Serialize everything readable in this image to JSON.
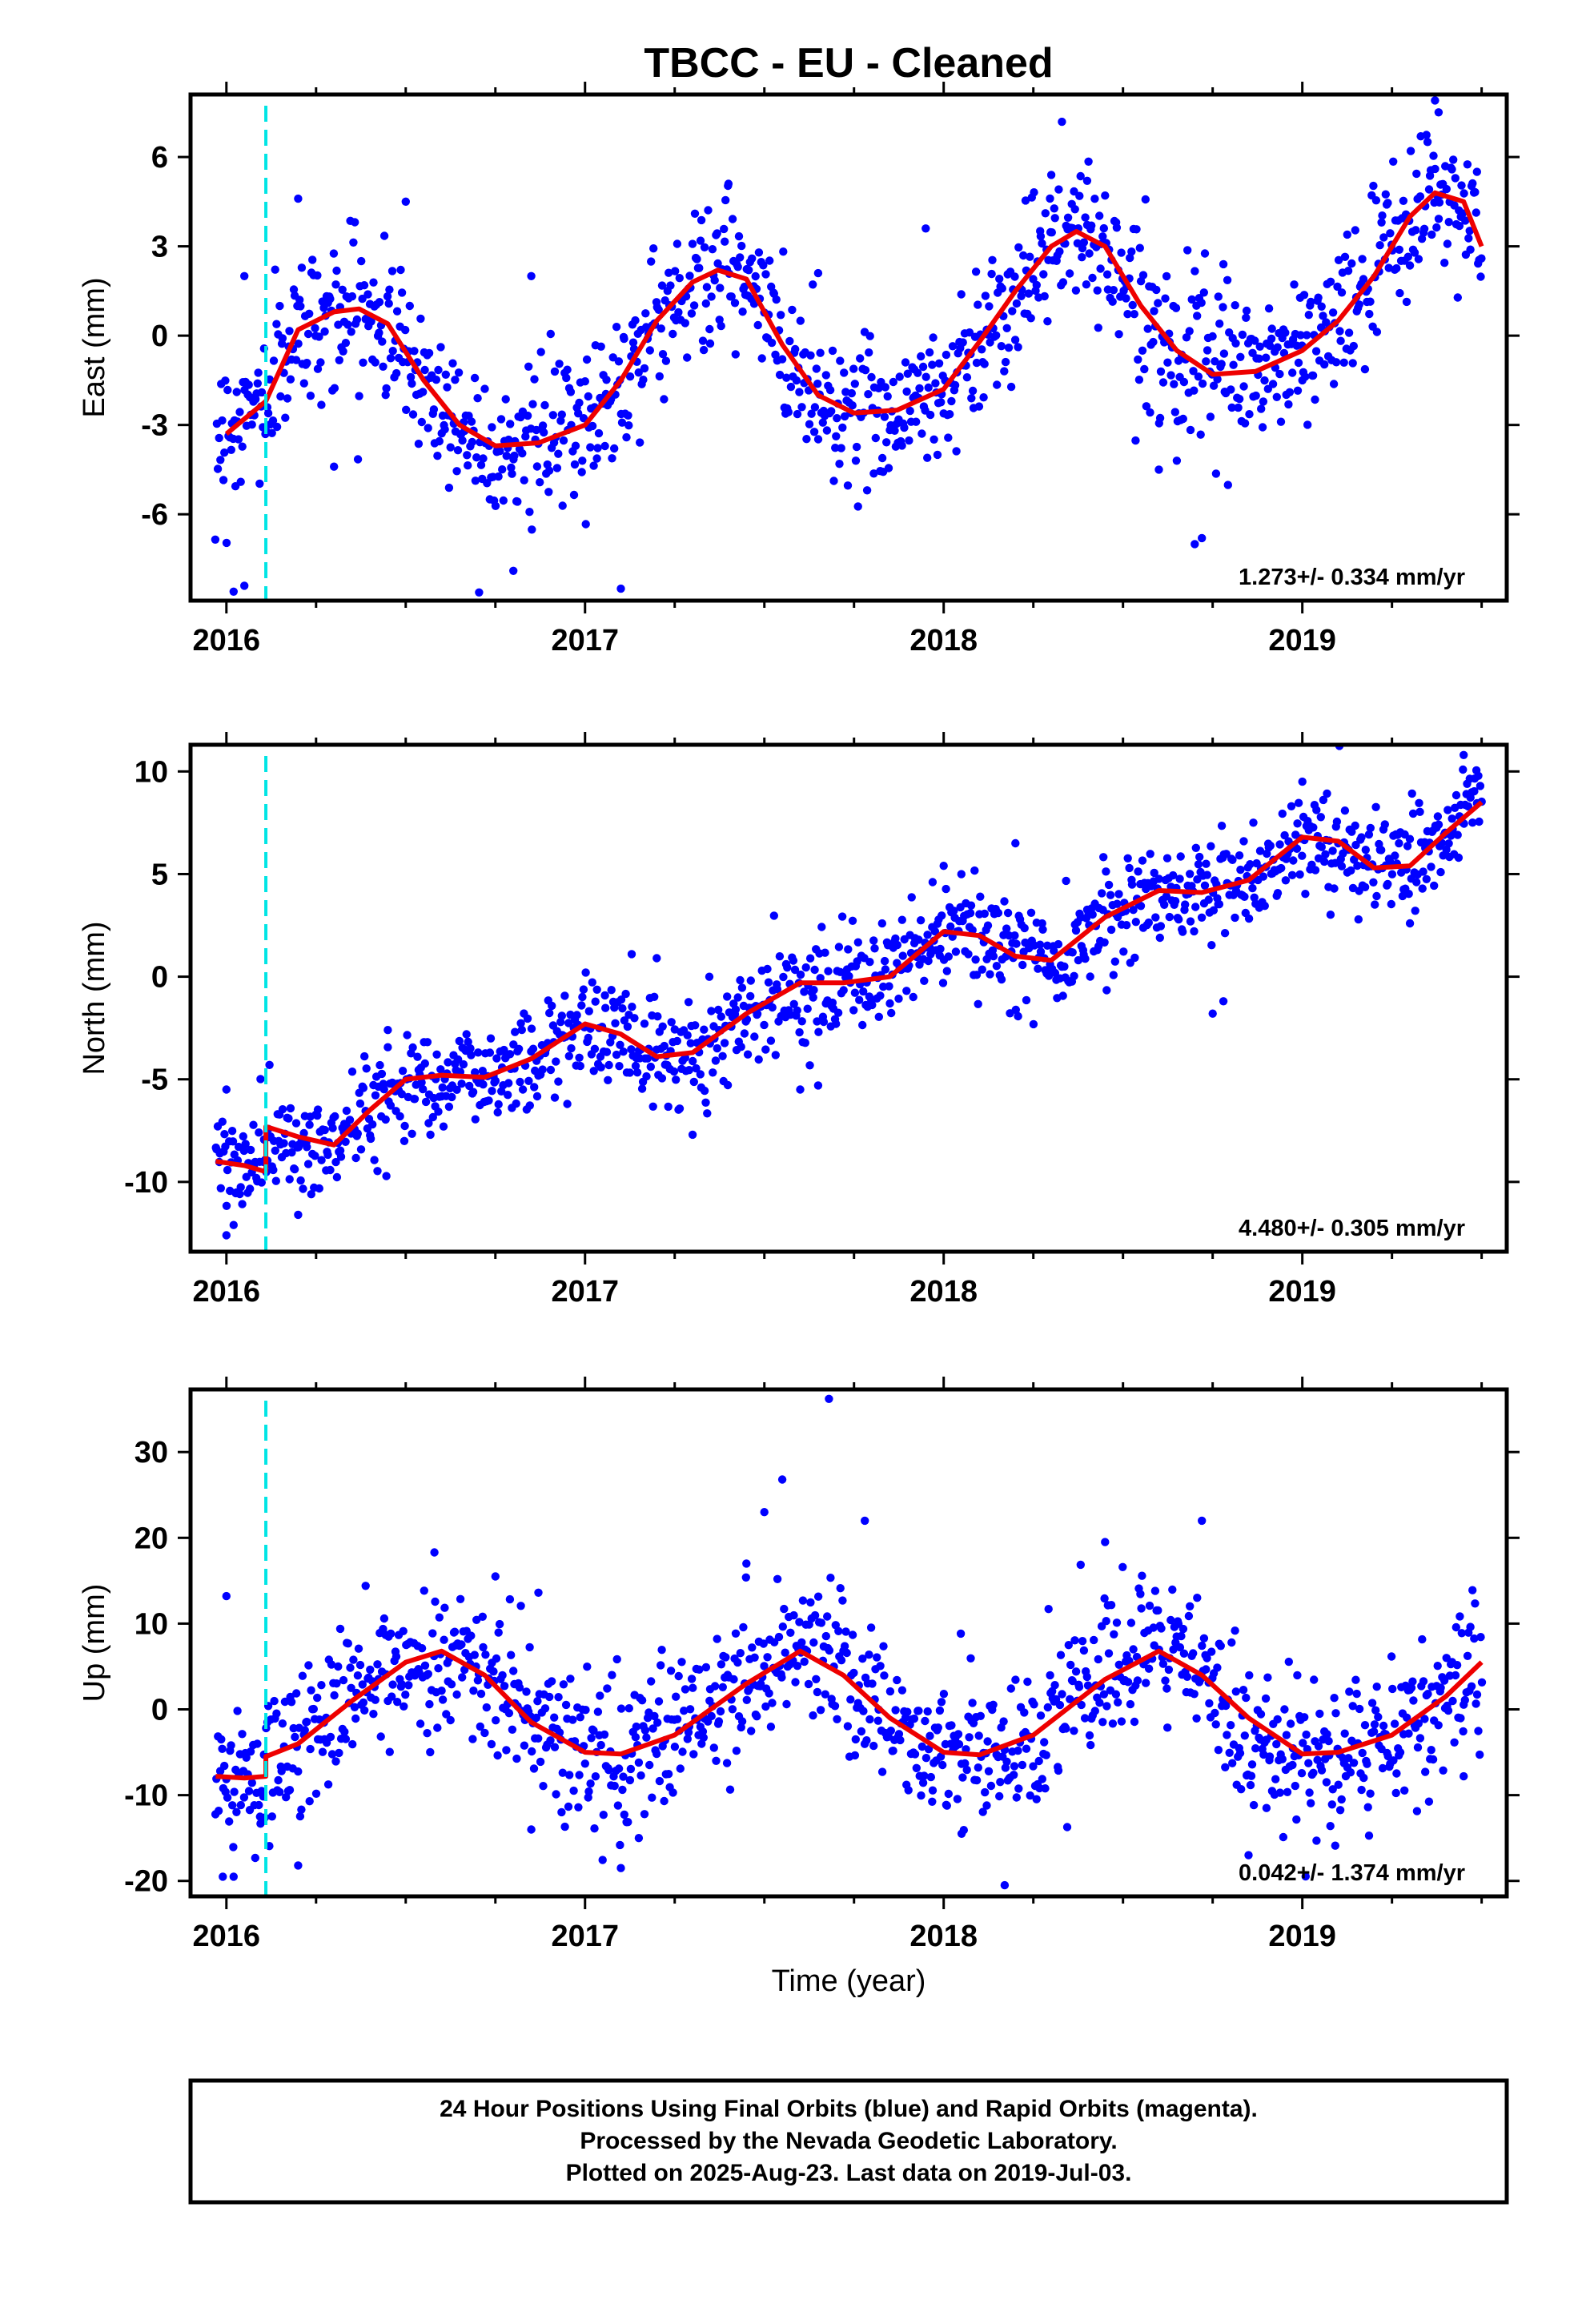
{
  "title": "TBCC  - EU - Cleaned",
  "xlabel": "Time (year)",
  "footer": {
    "lines": [
      "24 Hour Positions Using Final Orbits (blue) and Rapid Orbits (magenta).",
      "Processed by the Nevada Geodetic Laboratory.",
      "Plotted on 2025-Aug-23. Last data on 2019-Jul-03."
    ]
  },
  "colors": {
    "points": "#0000ff",
    "fit": "#ee0000",
    "offset_line": "#00e5e5",
    "frame": "#000000"
  },
  "chart_data": [
    {
      "type": "scatter",
      "component": "east",
      "ylabel": "East (mm)",
      "xlim": [
        2015.9,
        2019.57
      ],
      "ylim": [
        -8.9,
        8.1
      ],
      "xticks": [
        2016,
        2017,
        2018,
        2019
      ],
      "xtick_labels": [
        "2016",
        "2017",
        "2018",
        "2019"
      ],
      "yticks": [
        -6,
        -3,
        0,
        3,
        6
      ],
      "ytick_labels": [
        "-6",
        "-3",
        "0",
        "3",
        "6"
      ],
      "rate_text": "1.273+/- 0.334 mm/yr",
      "rate_mm_per_yr": 1.273,
      "offset_epoch": 2016.11,
      "fit": {
        "x": [
          2016.0,
          2016.05,
          2016.11,
          2016.2,
          2016.3,
          2016.37,
          2016.45,
          2016.55,
          2016.65,
          2016.75,
          2016.87,
          2017.0,
          2017.1,
          2017.2,
          2017.3,
          2017.37,
          2017.45,
          2017.55,
          2017.65,
          2017.75,
          2017.87,
          2018.0,
          2018.1,
          2018.2,
          2018.3,
          2018.37,
          2018.45,
          2018.55,
          2018.65,
          2018.75,
          2018.87,
          2019.0,
          2019.1,
          2019.2,
          2019.3,
          2019.37,
          2019.45,
          2019.5
        ],
        "y": [
          -3.3,
          -2.8,
          -2.2,
          0.2,
          0.8,
          0.9,
          0.4,
          -1.5,
          -3.0,
          -3.7,
          -3.6,
          -3.0,
          -1.5,
          0.5,
          1.8,
          2.2,
          1.9,
          -0.3,
          -2.0,
          -2.6,
          -2.5,
          -1.8,
          -0.2,
          1.5,
          3.0,
          3.5,
          3.0,
          1.0,
          -0.5,
          -1.3,
          -1.2,
          -0.5,
          0.5,
          2.0,
          4.0,
          4.8,
          4.5,
          3.0
        ]
      },
      "points": {
        "x0": 2015.97,
        "x1": 2019.5,
        "count": 1150,
        "scatter_mm": 1.25,
        "model": [
          [
            2015.97,
            -3.4
          ],
          [
            2016.05,
            -2.7
          ],
          [
            2016.11,
            -2.2
          ],
          [
            2016.2,
            0.2
          ],
          [
            2016.3,
            0.8
          ],
          [
            2016.37,
            0.9
          ],
          [
            2016.45,
            0.4
          ],
          [
            2016.55,
            -1.5
          ],
          [
            2016.65,
            -3.0
          ],
          [
            2016.75,
            -3.7
          ],
          [
            2016.87,
            -3.6
          ],
          [
            2017.0,
            -3.0
          ],
          [
            2017.1,
            -1.5
          ],
          [
            2017.2,
            0.5
          ],
          [
            2017.3,
            1.8
          ],
          [
            2017.37,
            2.2
          ],
          [
            2017.45,
            1.9
          ],
          [
            2017.55,
            -0.3
          ],
          [
            2017.65,
            -2.0
          ],
          [
            2017.75,
            -2.6
          ],
          [
            2017.87,
            -2.5
          ],
          [
            2018.0,
            -1.8
          ],
          [
            2018.1,
            -0.2
          ],
          [
            2018.2,
            1.5
          ],
          [
            2018.3,
            3.0
          ],
          [
            2018.37,
            3.5
          ],
          [
            2018.45,
            3.0
          ],
          [
            2018.55,
            1.0
          ],
          [
            2018.65,
            -0.5
          ],
          [
            2018.75,
            -1.3
          ],
          [
            2018.87,
            -1.2
          ],
          [
            2019.0,
            -0.5
          ],
          [
            2019.1,
            0.5
          ],
          [
            2019.2,
            2.0
          ],
          [
            2019.3,
            4.0
          ],
          [
            2019.37,
            4.8
          ],
          [
            2019.45,
            4.5
          ],
          [
            2019.5,
            3.0
          ]
        ],
        "outliers": [
          [
            2016.02,
            -8.6
          ],
          [
            2016.05,
            -8.4
          ],
          [
            2017.1,
            -8.5
          ],
          [
            2016.8,
            -7.9
          ],
          [
            2018.7,
            -7.0
          ],
          [
            2018.72,
            -6.8
          ],
          [
            2019.37,
            7.9
          ],
          [
            2019.38,
            7.5
          ],
          [
            2016.2,
            4.6
          ],
          [
            2016.5,
            4.5
          ],
          [
            2017.4,
            5.1
          ],
          [
            2018.3,
            5.4
          ],
          [
            2018.4,
            5.2
          ],
          [
            2017.95,
            3.6
          ],
          [
            2018.78,
            2.4
          ],
          [
            2016.85,
            2.0
          ],
          [
            2017.65,
            2.1
          ],
          [
            2019.0,
            -1.5
          ],
          [
            2016.3,
            -4.4
          ],
          [
            2018.65,
            -4.2
          ],
          [
            2018.6,
            -4.5
          ],
          [
            2016.05,
            2.0
          ]
        ]
      }
    },
    {
      "type": "scatter",
      "component": "north",
      "ylabel": "North (mm)",
      "xlim": [
        2015.9,
        2019.57
      ],
      "ylim": [
        -13.4,
        11.3
      ],
      "xticks": [
        2016,
        2017,
        2018,
        2019
      ],
      "xtick_labels": [
        "2016",
        "2017",
        "2018",
        "2019"
      ],
      "yticks": [
        -10,
        -5,
        0,
        5,
        10
      ],
      "ytick_labels": [
        "-10",
        "-5",
        "0",
        "5",
        "10"
      ],
      "rate_text": "4.480+/- 0.305 mm/yr",
      "rate_mm_per_yr": 4.48,
      "offset_epoch": 2016.11,
      "fit": {
        "x": [
          2015.97,
          2016.05,
          2016.11,
          2016.11,
          2016.2,
          2016.3,
          2016.4,
          2016.5,
          2016.6,
          2016.72,
          2016.85,
          2017.0,
          2017.1,
          2017.2,
          2017.3,
          2017.45,
          2017.6,
          2017.72,
          2017.85,
          2018.0,
          2018.1,
          2018.2,
          2018.3,
          2018.45,
          2018.6,
          2018.72,
          2018.85,
          2019.0,
          2019.1,
          2019.2,
          2019.3,
          2019.4,
          2019.5
        ],
        "y": [
          -9.0,
          -9.2,
          -9.5,
          -7.3,
          -7.8,
          -8.2,
          -6.5,
          -5.0,
          -4.8,
          -4.9,
          -4.0,
          -2.3,
          -2.8,
          -3.9,
          -3.7,
          -1.8,
          -0.3,
          -0.3,
          0.0,
          2.2,
          2.0,
          1.0,
          0.8,
          2.9,
          4.2,
          4.1,
          4.7,
          6.8,
          6.6,
          5.3,
          5.4,
          7.0,
          8.5
        ]
      },
      "points": {
        "x0": 2015.97,
        "x1": 2019.5,
        "count": 1150,
        "scatter_mm": 1.25,
        "model": [
          [
            2015.97,
            -9.0
          ],
          [
            2016.05,
            -9.2
          ],
          [
            2016.11,
            -9.3
          ],
          [
            2016.12,
            -7.8
          ],
          [
            2016.2,
            -8.5
          ],
          [
            2016.3,
            -8.2
          ],
          [
            2016.4,
            -6.5
          ],
          [
            2016.5,
            -5.0
          ],
          [
            2016.6,
            -4.8
          ],
          [
            2016.72,
            -4.9
          ],
          [
            2016.85,
            -4.0
          ],
          [
            2017.0,
            -2.3
          ],
          [
            2017.1,
            -2.8
          ],
          [
            2017.2,
            -3.9
          ],
          [
            2017.3,
            -3.7
          ],
          [
            2017.45,
            -1.8
          ],
          [
            2017.6,
            -0.3
          ],
          [
            2017.72,
            -0.3
          ],
          [
            2017.85,
            0.0
          ],
          [
            2018.0,
            2.2
          ],
          [
            2018.1,
            2.0
          ],
          [
            2018.2,
            1.0
          ],
          [
            2018.3,
            0.8
          ],
          [
            2018.45,
            2.9
          ],
          [
            2018.6,
            4.2
          ],
          [
            2018.72,
            4.1
          ],
          [
            2018.85,
            4.7
          ],
          [
            2019.0,
            6.8
          ],
          [
            2019.1,
            6.6
          ],
          [
            2019.2,
            5.3
          ],
          [
            2019.3,
            5.4
          ],
          [
            2019.4,
            7.0
          ],
          [
            2019.5,
            8.5
          ]
        ],
        "outliers": [
          [
            2016.0,
            -12.6
          ],
          [
            2016.02,
            -12.1
          ],
          [
            2016.0,
            -5.5
          ],
          [
            2017.6,
            -5.5
          ],
          [
            2017.65,
            -5.3
          ],
          [
            2017.3,
            -7.7
          ],
          [
            2018.75,
            -1.8
          ],
          [
            2018.78,
            -1.2
          ],
          [
            2019.0,
            9.5
          ],
          [
            2019.45,
            10.8
          ],
          [
            2019.3,
            2.6
          ],
          [
            2017.2,
            0.9
          ],
          [
            2017.13,
            1.1
          ],
          [
            2018.2,
            6.5
          ],
          [
            2018.0,
            5.4
          ],
          [
            2016.45,
            -2.6
          ],
          [
            2016.12,
            -4.3
          ],
          [
            2016.2,
            -11.6
          ]
        ]
      }
    },
    {
      "type": "scatter",
      "component": "up",
      "ylabel": "Up (mm)",
      "xlim": [
        2015.9,
        2019.57
      ],
      "ylim": [
        -21.8,
        37.3
      ],
      "xticks": [
        2016,
        2017,
        2018,
        2019
      ],
      "xtick_labels": [
        "2016",
        "2017",
        "2018",
        "2019"
      ],
      "yticks": [
        -20,
        -10,
        0,
        10,
        20,
        30
      ],
      "ytick_labels": [
        "-20",
        "-10",
        "0",
        "10",
        "20",
        "30"
      ],
      "rate_text": "0.042+/- 1.374 mm/yr",
      "rate_mm_per_yr": 0.042,
      "offset_epoch": 2016.11,
      "fit": {
        "x": [
          2015.97,
          2016.05,
          2016.11,
          2016.11,
          2016.2,
          2016.35,
          2016.5,
          2016.6,
          2016.72,
          2016.85,
          2017.0,
          2017.1,
          2017.25,
          2017.45,
          2017.6,
          2017.72,
          2017.85,
          2018.0,
          2018.1,
          2018.25,
          2018.45,
          2018.6,
          2018.72,
          2018.85,
          2019.0,
          2019.1,
          2019.25,
          2019.4,
          2019.5
        ],
        "y": [
          -7.8,
          -8.0,
          -7.8,
          -5.5,
          -4.0,
          1.0,
          5.5,
          6.8,
          4.0,
          -1.5,
          -5.0,
          -5.2,
          -3.0,
          3.0,
          6.8,
          4.0,
          -1.0,
          -5.0,
          -5.3,
          -3.0,
          3.5,
          6.8,
          4.0,
          -1.0,
          -5.2,
          -5.0,
          -3.0,
          1.5,
          5.5
        ]
      },
      "points": {
        "x0": 2015.97,
        "x1": 2019.5,
        "count": 1150,
        "scatter_mm": 4.3,
        "model": [
          [
            2015.97,
            -8.0
          ],
          [
            2016.05,
            -8.5
          ],
          [
            2016.11,
            -8.5
          ],
          [
            2016.12,
            -7.0
          ],
          [
            2016.2,
            -4.0
          ],
          [
            2016.35,
            1.0
          ],
          [
            2016.5,
            5.5
          ],
          [
            2016.6,
            6.8
          ],
          [
            2016.72,
            4.0
          ],
          [
            2016.85,
            -1.5
          ],
          [
            2017.0,
            -5.0
          ],
          [
            2017.1,
            -5.2
          ],
          [
            2017.25,
            -3.0
          ],
          [
            2017.45,
            3.5
          ],
          [
            2017.6,
            8.0
          ],
          [
            2017.72,
            4.5
          ],
          [
            2017.85,
            -1.0
          ],
          [
            2018.0,
            -5.0
          ],
          [
            2018.1,
            -5.3
          ],
          [
            2018.25,
            -3.0
          ],
          [
            2018.45,
            3.5
          ],
          [
            2018.6,
            6.8
          ],
          [
            2018.72,
            4.0
          ],
          [
            2018.85,
            -3.0
          ],
          [
            2019.0,
            -6.5
          ],
          [
            2019.1,
            -6.0
          ],
          [
            2019.25,
            -3.0
          ],
          [
            2019.4,
            1.5
          ],
          [
            2019.5,
            5.5
          ]
        ],
        "outliers": [
          [
            2017.68,
            36.2
          ],
          [
            2017.55,
            26.8
          ],
          [
            2017.5,
            23.0
          ],
          [
            2017.78,
            22.0
          ],
          [
            2018.72,
            22.0
          ],
          [
            2018.45,
            19.5
          ],
          [
            2016.58,
            18.3
          ],
          [
            2016.0,
            13.2
          ],
          [
            2016.87,
            13.6
          ],
          [
            2017.45,
            17.0
          ],
          [
            2015.99,
            -19.5
          ],
          [
            2016.02,
            -19.5
          ],
          [
            2016.2,
            -18.2
          ],
          [
            2017.1,
            -18.5
          ],
          [
            2017.15,
            -15.0
          ],
          [
            2018.17,
            -20.5
          ],
          [
            2018.85,
            -17.0
          ],
          [
            2018.05,
            -14.5
          ],
          [
            2016.85,
            -14.0
          ],
          [
            2016.1,
            -13.0
          ],
          [
            2019.45,
            -7.8
          ],
          [
            2016.75,
            15.5
          ],
          [
            2018.9,
            -11.5
          ]
        ]
      }
    }
  ]
}
